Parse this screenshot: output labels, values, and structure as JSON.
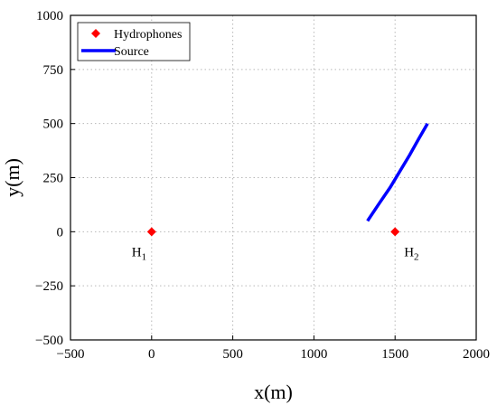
{
  "chart_data": {
    "type": "scatter",
    "title": "",
    "xlabel": "x(m)",
    "ylabel": "y(m)",
    "xlim": [
      -500,
      2000
    ],
    "ylim": [
      -500,
      1000
    ],
    "xticks": [
      -500,
      0,
      500,
      1000,
      1500,
      2000
    ],
    "yticks": [
      -500,
      -250,
      0,
      250,
      500,
      750,
      1000
    ],
    "xtick_labels": [
      "−500",
      "0",
      "500",
      "1000",
      "1500",
      "2000"
    ],
    "ytick_labels": [
      "−500",
      "−250",
      "0",
      "250",
      "500",
      "750",
      "1000"
    ],
    "grid": true,
    "legend": {
      "position": "top-left"
    },
    "series": [
      {
        "name": "Hydrophones",
        "marker": "diamond",
        "color": "#ff0000",
        "points": [
          {
            "x": 0,
            "y": 0,
            "label": "H",
            "sub": "1"
          },
          {
            "x": 1500,
            "y": 0,
            "label": "H",
            "sub": "2"
          }
        ]
      },
      {
        "name": "Source",
        "type": "line",
        "color": "#0000ff",
        "points": [
          {
            "x": 1330,
            "y": 50
          },
          {
            "x": 1400,
            "y": 128
          },
          {
            "x": 1470,
            "y": 205
          },
          {
            "x": 1530,
            "y": 280
          },
          {
            "x": 1590,
            "y": 355
          },
          {
            "x": 1645,
            "y": 428
          },
          {
            "x": 1700,
            "y": 500
          }
        ]
      }
    ]
  }
}
